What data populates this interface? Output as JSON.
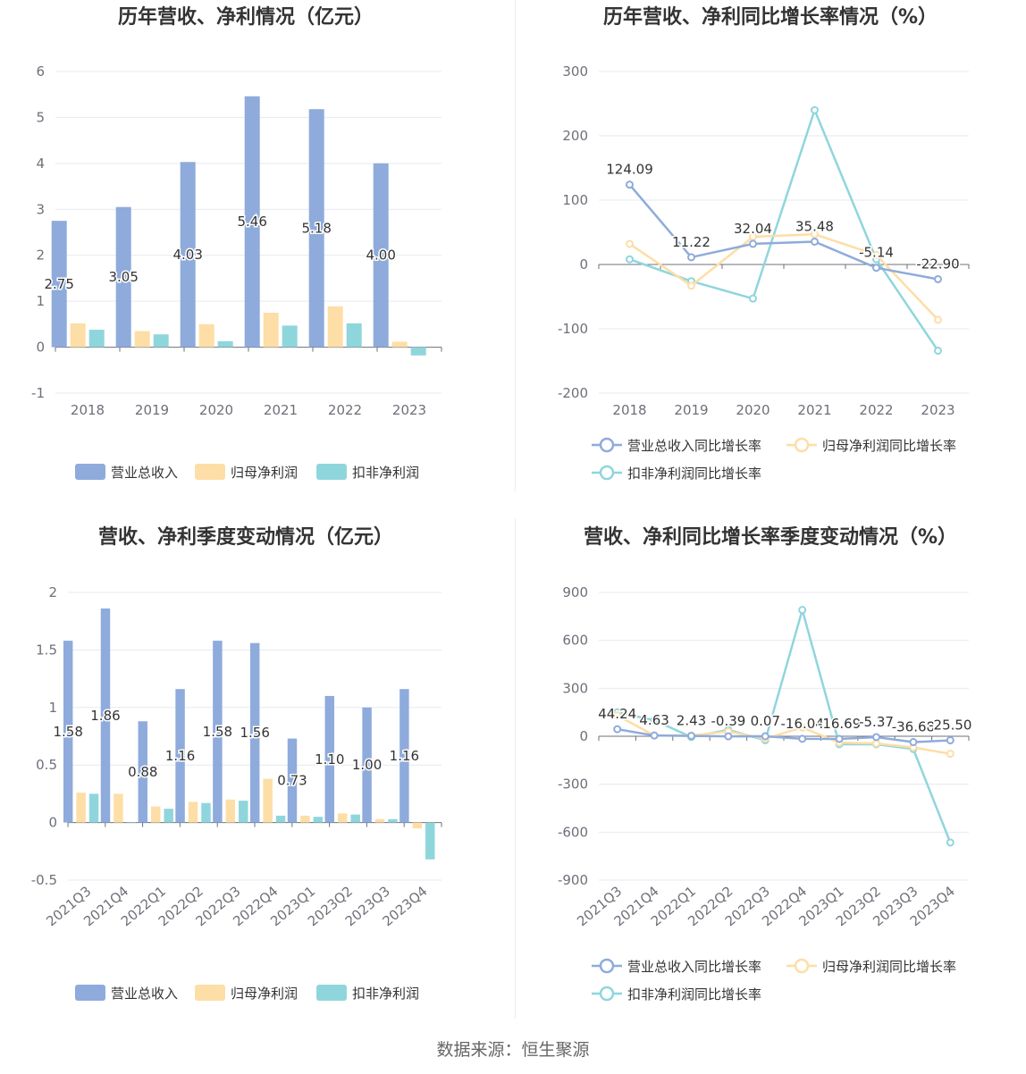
{
  "colors": {
    "revenue": "#8eabdc",
    "net_profit": "#fddea6",
    "deducted_profit": "#8fd6dc",
    "grid": "#e6e9f0",
    "axis": "#6e7079"
  },
  "source_text": "数据来源：恒生聚源",
  "chart_data": [
    {
      "type": "bar",
      "title": "历年营收、净利情况（亿元）",
      "categories": [
        "2018",
        "2019",
        "2020",
        "2021",
        "2022",
        "2023"
      ],
      "ylim": [
        -1,
        6
      ],
      "yticks": [
        -1,
        0,
        1,
        2,
        3,
        4,
        5,
        6
      ],
      "grid": true,
      "legend": "bottom",
      "series": [
        {
          "name": "营业总收入",
          "values": [
            2.75,
            3.05,
            4.03,
            5.46,
            5.18,
            4.0
          ],
          "labels": [
            "2.75",
            "3.05",
            "4.03",
            "5.46",
            "5.18",
            "4.00"
          ]
        },
        {
          "name": "归母净利润",
          "values": [
            0.52,
            0.35,
            0.5,
            0.75,
            0.89,
            0.12
          ]
        },
        {
          "name": "扣非净利润",
          "values": [
            0.38,
            0.28,
            0.13,
            0.47,
            0.52,
            -0.18
          ]
        }
      ]
    },
    {
      "type": "line",
      "title": "历年营收、净利同比增长率情况（%）",
      "categories": [
        "2018",
        "2019",
        "2020",
        "2021",
        "2022",
        "2023"
      ],
      "ylim": [
        -200,
        300
      ],
      "yticks": [
        -200,
        -100,
        0,
        100,
        200,
        300
      ],
      "grid": true,
      "legend": "bottom",
      "series": [
        {
          "name": "营业总收入同比增长率",
          "values": [
            124.09,
            11.22,
            32.04,
            35.48,
            -5.14,
            -22.9
          ],
          "labels": [
            "124.09",
            "11.22",
            "32.04",
            "35.48",
            "-5.14",
            "-22.90"
          ]
        },
        {
          "name": "归母净利润同比增长率",
          "values": [
            32,
            -33,
            43,
            47,
            15,
            -86
          ]
        },
        {
          "name": "扣非净利润同比增长率",
          "values": [
            8,
            -26,
            -53,
            240,
            8,
            -134
          ]
        }
      ]
    },
    {
      "type": "bar",
      "title": "营收、净利季度变动情况（亿元）",
      "categories": [
        "2021Q3",
        "2021Q4",
        "2022Q1",
        "2022Q2",
        "2022Q3",
        "2022Q4",
        "2023Q1",
        "2023Q2",
        "2023Q3",
        "2023Q4"
      ],
      "ylim": [
        -0.5,
        2
      ],
      "yticks": [
        -0.5,
        0,
        0.5,
        1,
        1.5,
        2
      ],
      "grid": true,
      "legend": "bottom",
      "series": [
        {
          "name": "营业总收入",
          "values": [
            1.58,
            1.86,
            0.88,
            1.16,
            1.58,
            1.56,
            0.73,
            1.1,
            1.0,
            1.16
          ],
          "labels": [
            "1.58",
            "1.86",
            "0.88",
            "1.16",
            "1.58",
            "1.56",
            "0.73",
            "1.10",
            "1.00",
            "1.16"
          ]
        },
        {
          "name": "归母净利润",
          "values": [
            0.26,
            0.25,
            0.14,
            0.18,
            0.2,
            0.38,
            0.06,
            0.08,
            0.03,
            -0.05
          ]
        },
        {
          "name": "扣非净利润",
          "values": [
            0.25,
            0.0,
            0.12,
            0.17,
            0.19,
            0.06,
            0.05,
            0.07,
            0.03,
            -0.32
          ]
        }
      ]
    },
    {
      "type": "line",
      "title": "营收、净利同比增长率季度变动情况（%）",
      "categories": [
        "2021Q3",
        "2021Q4",
        "2022Q1",
        "2022Q2",
        "2022Q3",
        "2022Q4",
        "2023Q1",
        "2023Q2",
        "2023Q3",
        "2023Q4"
      ],
      "ylim": [
        -900,
        900
      ],
      "yticks": [
        -900,
        -600,
        -300,
        0,
        300,
        600,
        900
      ],
      "grid": true,
      "legend": "bottom",
      "series": [
        {
          "name": "营业总收入同比增长率",
          "values": [
            44.24,
            4.63,
            2.43,
            -0.39,
            0.07,
            -16.04,
            -16.69,
            -5.37,
            -36.68,
            -25.5
          ],
          "labels": [
            "44.24",
            "4.63",
            "2.43",
            "-0.39",
            "0.07",
            "-16.04",
            "-16.69",
            "-5.37",
            "-36.68",
            "-25.50"
          ]
        },
        {
          "name": "归母净利润同比增长率",
          "values": [
            130,
            5,
            5,
            30,
            -15,
            55,
            -40,
            -45,
            -70,
            -110
          ]
        },
        {
          "name": "扣非净利润同比增长率",
          "values": [
            150,
            100,
            -5,
            40,
            -25,
            790,
            -50,
            -50,
            -80,
            -665
          ]
        }
      ]
    }
  ]
}
